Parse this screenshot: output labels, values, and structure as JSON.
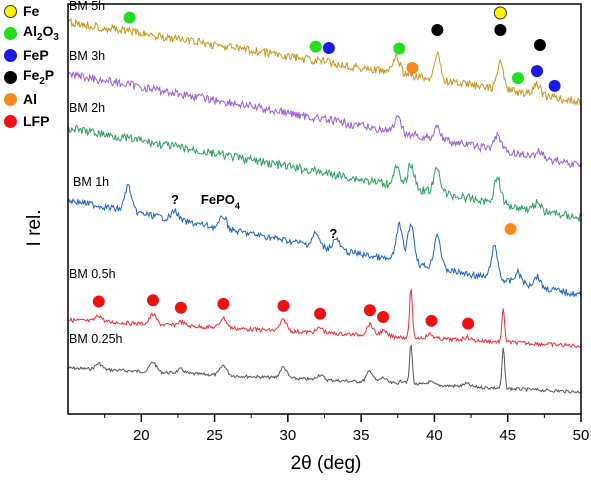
{
  "chart_data": {
    "type": "line",
    "title": "",
    "xlabel": "2θ (deg)",
    "ylabel": "I rel.",
    "xlim": [
      15,
      50
    ],
    "x_ticks": [
      20,
      25,
      30,
      35,
      40,
      45,
      50
    ],
    "y_ticks": "none",
    "grid": false,
    "legend_position": "top-left-outside",
    "legend": [
      {
        "name": "Fe",
        "color": "#fff200",
        "edge": "#333333"
      },
      {
        "name": "Al2O3",
        "color": "#22dd22"
      },
      {
        "name": "FeP",
        "color": "#1a1ae6"
      },
      {
        "name": "Fe2P",
        "color": "#000000"
      },
      {
        "name": "Al",
        "color": "#f58a1f"
      },
      {
        "name": "LFP",
        "color": "#ee1111"
      }
    ],
    "series": [
      {
        "name": "BM 0.25h",
        "color": "#555555",
        "peaks": [
          [
            17.1,
            0.6
          ],
          [
            20.8,
            1.0
          ],
          [
            22.7,
            0.4
          ],
          [
            25.6,
            1.0
          ],
          [
            29.7,
            1.1
          ],
          [
            32.2,
            0.5
          ],
          [
            35.6,
            1.1
          ],
          [
            36.5,
            0.5
          ],
          [
            37.9,
            0.3
          ],
          [
            38.4,
            4.0
          ],
          [
            39.7,
            0.3
          ],
          [
            42.2,
            0.3
          ],
          [
            44.7,
            4.0
          ]
        ]
      },
      {
        "name": "BM 0.5h",
        "color": "#e8313b",
        "peaks": [
          [
            17.1,
            0.6
          ],
          [
            20.8,
            1.0
          ],
          [
            22.7,
            0.4
          ],
          [
            25.6,
            1.0
          ],
          [
            29.7,
            1.1
          ],
          [
            32.2,
            0.5
          ],
          [
            35.6,
            1.1
          ],
          [
            36.5,
            0.5
          ],
          [
            38.4,
            5.0
          ],
          [
            39.7,
            0.4
          ],
          [
            42.2,
            0.3
          ],
          [
            44.7,
            3.3
          ]
        ]
      },
      {
        "name": "BM 1h",
        "color": "#1e63c8",
        "peaks": [
          [
            19.1,
            1.4
          ],
          [
            22.3,
            0.5
          ],
          [
            25.6,
            0.7
          ],
          [
            31.9,
            0.7
          ],
          [
            33.3,
            0.6
          ],
          [
            37.6,
            2.0
          ],
          [
            38.4,
            2.2
          ],
          [
            40.2,
            1.9
          ],
          [
            44.1,
            1.8
          ],
          [
            45.7,
            0.6
          ],
          [
            47.0,
            0.6
          ]
        ]
      },
      {
        "name": "BM 2h",
        "color": "#2e9e5e",
        "peaks": [
          [
            37.4,
            0.9
          ],
          [
            38.4,
            1.2
          ],
          [
            40.2,
            1.2
          ],
          [
            44.3,
            1.3
          ],
          [
            47.0,
            0.4
          ]
        ]
      },
      {
        "name": "BM 3h",
        "color": "#9b5fd0",
        "peaks": [
          [
            37.5,
            0.6
          ],
          [
            40.2,
            0.6
          ],
          [
            44.3,
            0.7
          ],
          [
            47.2,
            0.3
          ]
        ]
      },
      {
        "name": "BM 5h",
        "color": "#c8961e",
        "peaks": [
          [
            37.4,
            0.7
          ],
          [
            40.2,
            1.0
          ],
          [
            44.5,
            1.1
          ],
          [
            47.0,
            0.5
          ]
        ]
      }
    ],
    "annotations": [
      {
        "text": "?",
        "x": 22.3,
        "series": "BM 1h"
      },
      {
        "text": "?",
        "x": 33.1,
        "series": "BM 1h"
      },
      {
        "text": "FePO4",
        "x": 25.4,
        "series": "BM 1h"
      }
    ],
    "phase_markers": [
      {
        "series": "BM 0.5h",
        "phase": "LFP",
        "x": [
          17.1,
          20.8,
          22.7,
          25.6,
          29.7,
          32.2,
          35.6,
          36.5,
          39.8,
          42.3
        ]
      },
      {
        "series": "BM 1h",
        "phase": "Al",
        "x": [
          45.2
        ]
      },
      {
        "series": "BM 5h",
        "phase": "Al2O3",
        "x": [
          19.2,
          31.9,
          37.6,
          45.7
        ]
      },
      {
        "series": "BM 5h",
        "phase": "FeP",
        "x": [
          32.8,
          47.0,
          48.2
        ]
      },
      {
        "series": "BM 5h",
        "phase": "Fe2P",
        "x": [
          40.2,
          44.5,
          47.2
        ]
      },
      {
        "series": "BM 5h",
        "phase": "Fe",
        "x": [
          44.5
        ]
      },
      {
        "series": "BM 5h",
        "phase": "Al",
        "x": [
          38.5
        ]
      }
    ]
  }
}
